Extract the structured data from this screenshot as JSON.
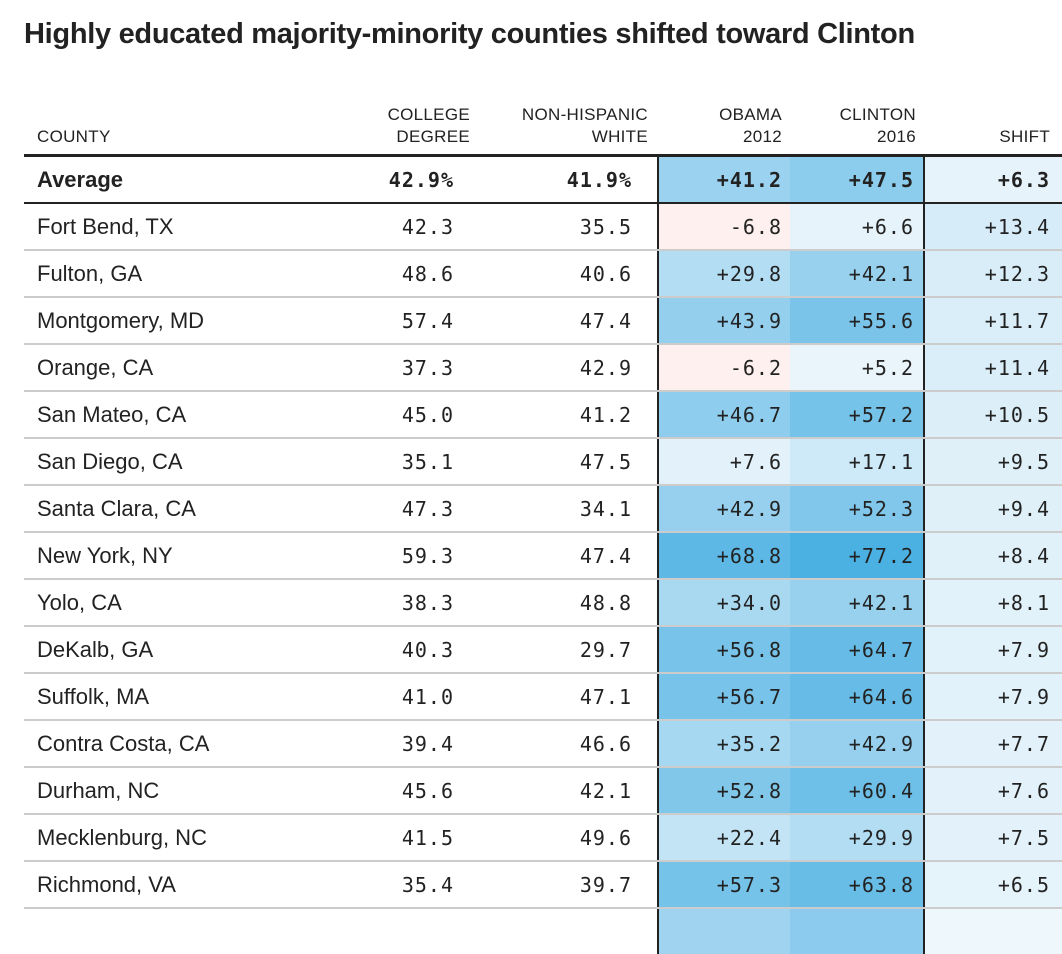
{
  "title": "Highly educated majority-minority counties shifted toward Clinton",
  "chart_data": {
    "type": "table",
    "title": "Highly educated majority-minority counties shifted toward Clinton",
    "columns": [
      [
        "COUNTY"
      ],
      [
        "COLLEGE",
        "DEGREE"
      ],
      [
        "NON-HISPANIC",
        "WHITE"
      ],
      [
        "OBAMA",
        "2012"
      ],
      [
        "CLINTON",
        "2016"
      ],
      [
        "SHIFT"
      ]
    ],
    "average": [
      "Average",
      "42.9%",
      "41.9%",
      "+41.2",
      "+47.5",
      "+6.3"
    ],
    "rows": [
      [
        "Fort Bend, TX",
        "42.3",
        "35.5",
        "-6.8",
        "+6.6",
        "+13.4"
      ],
      [
        "Fulton, GA",
        "48.6",
        "40.6",
        "+29.8",
        "+42.1",
        "+12.3"
      ],
      [
        "Montgomery, MD",
        "57.4",
        "47.4",
        "+43.9",
        "+55.6",
        "+11.7"
      ],
      [
        "Orange, CA",
        "37.3",
        "42.9",
        "-6.2",
        "+5.2",
        "+11.4"
      ],
      [
        "San Mateo, CA",
        "45.0",
        "41.2",
        "+46.7",
        "+57.2",
        "+10.5"
      ],
      [
        "San Diego, CA",
        "35.1",
        "47.5",
        "+7.6",
        "+17.1",
        "+9.5"
      ],
      [
        "Santa Clara, CA",
        "47.3",
        "34.1",
        "+42.9",
        "+52.3",
        "+9.4"
      ],
      [
        "New York, NY",
        "59.3",
        "47.4",
        "+68.8",
        "+77.2",
        "+8.4"
      ],
      [
        "Yolo, CA",
        "38.3",
        "48.8",
        "+34.0",
        "+42.1",
        "+8.1"
      ],
      [
        "DeKalb, GA",
        "40.3",
        "29.7",
        "+56.8",
        "+64.7",
        "+7.9"
      ],
      [
        "Suffolk, MA",
        "41.0",
        "47.1",
        "+56.7",
        "+64.6",
        "+7.9"
      ],
      [
        "Contra Costa, CA",
        "39.4",
        "46.6",
        "+35.2",
        "+42.9",
        "+7.7"
      ],
      [
        "Durham, NC",
        "45.6",
        "42.1",
        "+52.8",
        "+60.4",
        "+7.6"
      ],
      [
        "Mecklenburg, NC",
        "41.5",
        "49.6",
        "+22.4",
        "+29.9",
        "+7.5"
      ],
      [
        "Richmond, VA",
        "35.4",
        "39.7",
        "+57.3",
        "+63.8",
        "+6.5"
      ]
    ],
    "colors": {
      "dem_max": "#4bb0e2",
      "rep_tint": "#fdf0ee",
      "shift_tint": "#e6f3fb"
    }
  }
}
